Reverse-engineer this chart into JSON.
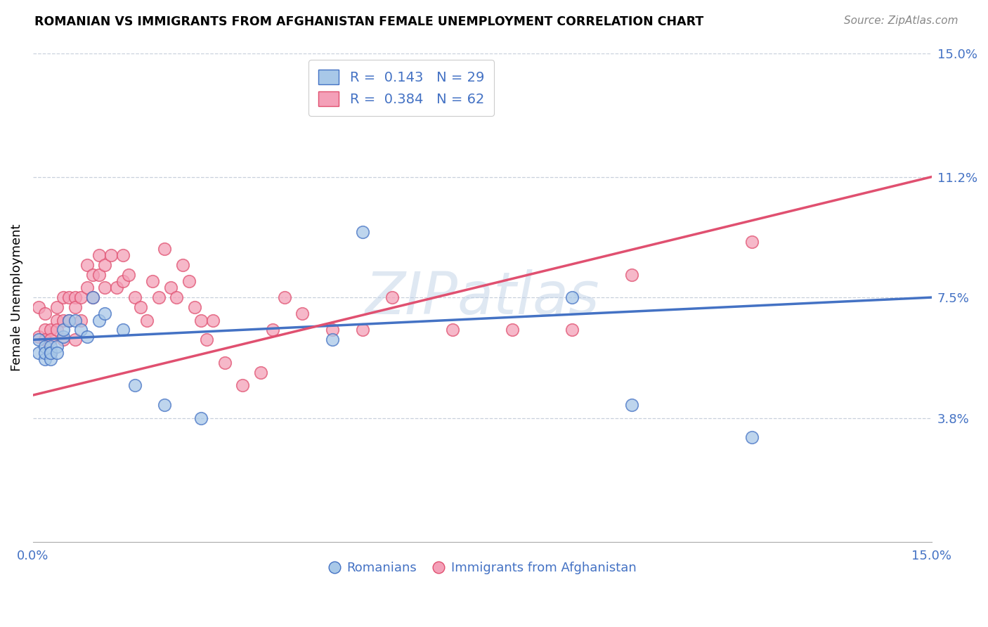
{
  "title": "ROMANIAN VS IMMIGRANTS FROM AFGHANISTAN FEMALE UNEMPLOYMENT CORRELATION CHART",
  "source": "Source: ZipAtlas.com",
  "ylabel": "Female Unemployment",
  "xlim": [
    0.0,
    0.15
  ],
  "ylim": [
    0.0,
    0.15
  ],
  "ytick_vals": [
    0.038,
    0.075,
    0.112,
    0.15
  ],
  "ytick_labels": [
    "3.8%",
    "7.5%",
    "11.2%",
    "15.0%"
  ],
  "watermark": "ZIPatlas",
  "romanian_color": "#a8c8e8",
  "afghan_color": "#f4a0b8",
  "romanian_line_color": "#4472c4",
  "afghan_line_color": "#e05070",
  "label_color": "#4472c4",
  "romanians_label": "Romanians",
  "afghans_label": "Immigrants from Afghanistan",
  "romanian_x": [
    0.001,
    0.001,
    0.002,
    0.002,
    0.002,
    0.003,
    0.003,
    0.003,
    0.003,
    0.004,
    0.004,
    0.005,
    0.005,
    0.006,
    0.007,
    0.008,
    0.009,
    0.01,
    0.011,
    0.012,
    0.015,
    0.017,
    0.022,
    0.028,
    0.05,
    0.055,
    0.09,
    0.1,
    0.12
  ],
  "romanian_y": [
    0.062,
    0.058,
    0.06,
    0.056,
    0.058,
    0.06,
    0.058,
    0.056,
    0.058,
    0.06,
    0.058,
    0.063,
    0.065,
    0.068,
    0.068,
    0.065,
    0.063,
    0.075,
    0.068,
    0.07,
    0.065,
    0.048,
    0.042,
    0.038,
    0.062,
    0.095,
    0.075,
    0.042,
    0.032
  ],
  "afghan_x": [
    0.001,
    0.001,
    0.002,
    0.002,
    0.002,
    0.003,
    0.003,
    0.003,
    0.004,
    0.004,
    0.004,
    0.005,
    0.005,
    0.005,
    0.006,
    0.006,
    0.007,
    0.007,
    0.007,
    0.008,
    0.008,
    0.009,
    0.009,
    0.01,
    0.01,
    0.011,
    0.011,
    0.012,
    0.012,
    0.013,
    0.014,
    0.015,
    0.015,
    0.016,
    0.017,
    0.018,
    0.019,
    0.02,
    0.021,
    0.022,
    0.023,
    0.024,
    0.025,
    0.026,
    0.027,
    0.028,
    0.029,
    0.03,
    0.032,
    0.035,
    0.038,
    0.04,
    0.042,
    0.045,
    0.05,
    0.055,
    0.06,
    0.07,
    0.08,
    0.09,
    0.1,
    0.12
  ],
  "afghan_y": [
    0.063,
    0.072,
    0.065,
    0.062,
    0.07,
    0.065,
    0.062,
    0.058,
    0.068,
    0.065,
    0.072,
    0.075,
    0.068,
    0.062,
    0.075,
    0.068,
    0.075,
    0.072,
    0.062,
    0.075,
    0.068,
    0.085,
    0.078,
    0.082,
    0.075,
    0.088,
    0.082,
    0.085,
    0.078,
    0.088,
    0.078,
    0.088,
    0.08,
    0.082,
    0.075,
    0.072,
    0.068,
    0.08,
    0.075,
    0.09,
    0.078,
    0.075,
    0.085,
    0.08,
    0.072,
    0.068,
    0.062,
    0.068,
    0.055,
    0.048,
    0.052,
    0.065,
    0.075,
    0.07,
    0.065,
    0.065,
    0.075,
    0.065,
    0.065,
    0.065,
    0.082,
    0.092
  ]
}
